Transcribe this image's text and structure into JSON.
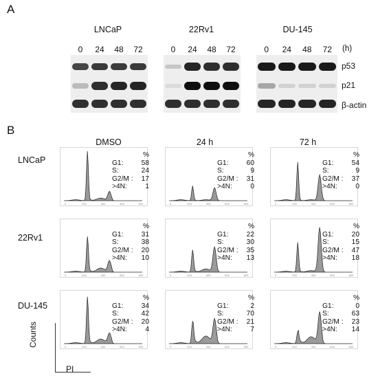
{
  "panel_a": {
    "letter": "A",
    "cell_lines": [
      "LNCaP",
      "22Rv1",
      "DU-145"
    ],
    "timepoints": [
      "0",
      "24",
      "48",
      "72"
    ],
    "time_unit": "(h)",
    "proteins": [
      "p53",
      "p21",
      "β-actin"
    ],
    "band_intensity": {
      "LNCaP": {
        "p53": [
          0.75,
          0.8,
          0.8,
          0.8
        ],
        "p21": [
          0.2,
          0.85,
          0.9,
          0.9
        ],
        "β-actin": [
          0.85,
          0.85,
          0.85,
          0.85
        ]
      },
      "22Rv1": {
        "p53": [
          0.15,
          0.9,
          0.85,
          0.85
        ],
        "p21": [
          0.05,
          1.0,
          1.0,
          1.0
        ],
        "β-actin": [
          0.85,
          0.85,
          0.85,
          0.85
        ]
      },
      "DU-145": {
        "p53": [
          0.95,
          0.95,
          0.95,
          0.95
        ],
        "p21": [
          0.3,
          0.1,
          0.1,
          0.1
        ],
        "β-actin": [
          0.9,
          0.9,
          0.9,
          0.9
        ]
      }
    }
  },
  "panel_b": {
    "letter": "B",
    "columns": [
      "DMSO",
      "24 h",
      "72 h"
    ],
    "rows": [
      "LNCaP",
      "22Rv1",
      "DU-145"
    ],
    "pct_symbol": "%",
    "stat_labels": [
      "G1:",
      "S:",
      "G2/M :",
      ">4N:"
    ],
    "y_axis_label": "Counts",
    "x_axis_label": "PI",
    "tick_labels": [
      "0",
      "200",
      "400",
      "600",
      "800"
    ]
  },
  "chart_data": [
    {
      "type": "histogram",
      "title": "LNCaP DMSO",
      "peak_g1": 1.0,
      "peak_g2": 0.18,
      "values": {
        "G1": 58,
        "S": 24,
        "G2/M": 17,
        ">4N": 1
      }
    },
    {
      "type": "histogram",
      "title": "LNCaP 24 h",
      "peak_g1": 0.3,
      "peak_g2": 0.26,
      "values": {
        "G1": 60,
        "S": 9,
        "G2/M": 31,
        ">4N": 0
      }
    },
    {
      "type": "histogram",
      "title": "LNCaP 72 h",
      "peak_g1": 0.78,
      "peak_g2": 0.52,
      "values": {
        "G1": 54,
        "S": 9,
        "G2/M": 37,
        ">4N": 0
      }
    },
    {
      "type": "histogram",
      "title": "22Rv1 DMSO",
      "peak_g1": 0.72,
      "peak_g2": 0.22,
      "values": {
        "G1": 31,
        "S": 38,
        "G2/M": 20,
        ">4N": 10
      }
    },
    {
      "type": "histogram",
      "title": "22Rv1 24 h",
      "peak_g1": 0.45,
      "peak_g2": 0.5,
      "values": {
        "G1": 22,
        "S": 30,
        "G2/M": 35,
        ">4N": 13
      }
    },
    {
      "type": "histogram",
      "title": "22Rv1 72 h",
      "peak_g1": 0.6,
      "peak_g2": 0.9,
      "values": {
        "G1": 20,
        "S": 15,
        "G2/M": 47,
        ">4N": 18
      }
    },
    {
      "type": "histogram",
      "title": "DU-145 DMSO",
      "peak_g1": 0.95,
      "peak_g2": 0.2,
      "values": {
        "G1": 34,
        "S": 42,
        "G2/M": 20,
        ">4N": 4
      }
    },
    {
      "type": "histogram",
      "title": "DU-145 24 h",
      "peak_g1": 0.45,
      "peak_g2": 0.48,
      "values": {
        "G1": 2,
        "S": 70,
        "G2/M": 21,
        ">4N": 7
      }
    },
    {
      "type": "histogram",
      "title": "DU-145 72 h",
      "peak_g1": 0.25,
      "peak_g2": 0.62,
      "values": {
        "G1": 0,
        "S": 63,
        "G2/M": 23,
        ">4N": 14
      }
    }
  ]
}
